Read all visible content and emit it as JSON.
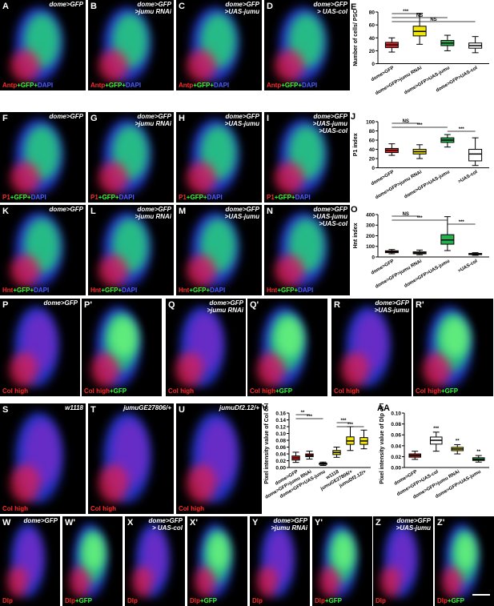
{
  "panels": [
    {
      "id": "A",
      "geno": [
        "dome>GFP"
      ],
      "stain": [
        [
          "Antp",
          "r"
        ],
        [
          "+GFP+",
          "g"
        ],
        [
          "DAPI",
          "b"
        ]
      ]
    },
    {
      "id": "B",
      "geno": [
        "dome>GFP",
        ">jumu RNAi"
      ],
      "stain": [
        [
          "Antp",
          "r"
        ],
        [
          "+GFP+",
          "g"
        ],
        [
          "DAPI",
          "b"
        ]
      ]
    },
    {
      "id": "C",
      "geno": [
        "dome>GFP",
        ">UAS-jumu"
      ],
      "stain": [
        [
          "Antp",
          "r"
        ],
        [
          "+GFP+",
          "g"
        ],
        [
          "DAPI",
          "b"
        ]
      ]
    },
    {
      "id": "D",
      "geno": [
        "dome>GFP",
        "> UAS-col"
      ],
      "stain": [
        [
          "Antp",
          "r"
        ],
        [
          "+GFP+",
          "g"
        ],
        [
          "DAPI",
          "b"
        ]
      ]
    },
    {
      "id": "F",
      "geno": [
        "dome>GFP"
      ],
      "stain": [
        [
          "P1",
          "r"
        ],
        [
          "+GFP+",
          "g"
        ],
        [
          "DAPI",
          "b"
        ]
      ]
    },
    {
      "id": "G",
      "geno": [
        "dome>GFP",
        ">jumu RNAi"
      ],
      "stain": [
        [
          "P1",
          "r"
        ],
        [
          "+GFP+",
          "g"
        ],
        [
          "DAPI",
          "b"
        ]
      ]
    },
    {
      "id": "H",
      "geno": [
        "dome>GFP",
        ">UAS-jumu"
      ],
      "stain": [
        [
          "P1",
          "r"
        ],
        [
          "+GFP+",
          "g"
        ],
        [
          "DAPI",
          "b"
        ]
      ]
    },
    {
      "id": "I",
      "geno": [
        "dome>GFP",
        ">UAS-jumu",
        ">UAS-col"
      ],
      "stain": [
        [
          "P1",
          "r"
        ],
        [
          "+GFP+",
          "g"
        ],
        [
          "DAPI",
          "b"
        ]
      ]
    },
    {
      "id": "K",
      "geno": [
        "dome>GFP"
      ],
      "stain": [
        [
          "Hnt",
          "r"
        ],
        [
          "+GFP+",
          "g"
        ],
        [
          "DAPI",
          "b"
        ]
      ]
    },
    {
      "id": "L",
      "geno": [
        "dome>GFP",
        ">jumu RNAi"
      ],
      "stain": [
        [
          "Hnt",
          "r"
        ],
        [
          "+GFP+",
          "g"
        ],
        [
          "DAPI",
          "b"
        ]
      ]
    },
    {
      "id": "M",
      "geno": [
        "dome>GFP",
        ">UAS-jumu"
      ],
      "stain": [
        [
          "Hnt",
          "r"
        ],
        [
          "+GFP+",
          "g"
        ],
        [
          "DAPI",
          "b"
        ]
      ]
    },
    {
      "id": "N",
      "geno": [
        "dome>GFP",
        ">UAS-jumu",
        ">UAS-col"
      ],
      "stain": [
        [
          "Hnt",
          "r"
        ],
        [
          "+GFP+",
          "g"
        ],
        [
          "DAPI",
          "b"
        ]
      ]
    },
    {
      "id": "P",
      "geno": [
        "dome>GFP"
      ],
      "stain": [
        [
          "Col high",
          "r"
        ]
      ]
    },
    {
      "id": "P'",
      "geno": [],
      "stain": [
        [
          "Col high",
          "r"
        ],
        [
          "+GFP",
          "g"
        ]
      ]
    },
    {
      "id": "Q",
      "geno": [
        "dome>GFP",
        ">jumu RNAi"
      ],
      "stain": [
        [
          "Col high",
          "r"
        ]
      ]
    },
    {
      "id": "Q'",
      "geno": [],
      "stain": [
        [
          "Col high",
          "r"
        ],
        [
          "+GFP",
          "g"
        ]
      ]
    },
    {
      "id": "R",
      "geno": [
        "dome>GFP",
        ">UAS-jumu"
      ],
      "stain": [
        [
          "Col high",
          "r"
        ]
      ]
    },
    {
      "id": "R'",
      "geno": [],
      "stain": [
        [
          "Col high",
          "r"
        ],
        [
          "+GFP",
          "g"
        ]
      ]
    },
    {
      "id": "S",
      "geno": [
        "w1118"
      ],
      "stain": [
        [
          "Col high",
          "r"
        ]
      ]
    },
    {
      "id": "T",
      "geno": [
        "jumuGE27806/+"
      ],
      "stain": [
        [
          "Col high",
          "r"
        ]
      ]
    },
    {
      "id": "U",
      "geno": [
        "jumuDf2.12/+"
      ],
      "stain": [
        [
          "Col high",
          "r"
        ]
      ]
    },
    {
      "id": "W",
      "geno": [
        "dome>GFP"
      ],
      "stain": [
        [
          "Dlp",
          "r"
        ]
      ]
    },
    {
      "id": "W'",
      "geno": [],
      "stain": [
        [
          "Dlp",
          "r"
        ],
        [
          "+GFP",
          "g"
        ]
      ]
    },
    {
      "id": "X",
      "geno": [
        "dome>GFP",
        "> UAS-col"
      ],
      "stain": [
        [
          "Dlp",
          "r"
        ]
      ]
    },
    {
      "id": "X'",
      "geno": [],
      "stain": [
        [
          "Dlp",
          "r"
        ],
        [
          "+GFP",
          "g"
        ]
      ]
    },
    {
      "id": "Y",
      "geno": [
        "dome>GFP",
        ">jumu RNAi"
      ],
      "stain": [
        [
          "Dlp",
          "r"
        ]
      ]
    },
    {
      "id": "Y'",
      "geno": [],
      "stain": [
        [
          "Dlp",
          "r"
        ],
        [
          "+GFP",
          "g"
        ]
      ]
    },
    {
      "id": "Z",
      "geno": [
        "dome>GFP",
        ">UAS-jumu"
      ],
      "stain": [
        [
          "Dlp",
          "r"
        ]
      ]
    },
    {
      "id": "Z'",
      "geno": [],
      "stain": [
        [
          "Dlp",
          "r"
        ],
        [
          "+GFP",
          "g"
        ]
      ]
    }
  ],
  "colors": {
    "red": "#e02020",
    "yellow": "#f2e60a",
    "green": "#22b14c",
    "white": "#ffffff"
  },
  "chart_data": [
    {
      "id": "E",
      "type": "box",
      "ylabel": "Number of cells/ PSC",
      "ylim": [
        0,
        80
      ],
      "yticks": [
        0,
        20,
        40,
        60,
        80
      ],
      "categories": [
        "dome>GFP",
        "dome>GFP>jumu RNAi",
        "dome>GFP>UAS-jumu",
        "dome>GFP>UAS-col"
      ],
      "boxes": [
        {
          "min": 18,
          "q1": 25,
          "med": 29,
          "q3": 33,
          "max": 40,
          "color": "red"
        },
        {
          "min": 30,
          "q1": 43,
          "med": 50,
          "q3": 58,
          "max": 78,
          "color": "yellow"
        },
        {
          "min": 20,
          "q1": 28,
          "med": 32,
          "q3": 36,
          "max": 44,
          "color": "green"
        },
        {
          "min": 17,
          "q1": 24,
          "med": 28,
          "q3": 32,
          "max": 42,
          "color": "white"
        }
      ],
      "sig": [
        {
          "a": 0,
          "b": 1,
          "label": "***"
        },
        {
          "a": 0,
          "b": 2,
          "label": "NS"
        },
        {
          "a": 0,
          "b": 3,
          "label": "NS"
        }
      ]
    },
    {
      "id": "J",
      "type": "box",
      "ylabel": "P1 index",
      "ylim": [
        0,
        100
      ],
      "yticks": [
        0,
        20,
        40,
        60,
        80,
        100
      ],
      "categories": [
        "dome>GFP",
        "dome>GFP>jumu RNAi",
        "dome>GFP>UAS-jumu",
        ">UAS-col"
      ],
      "boxes": [
        {
          "min": 27,
          "q1": 33,
          "med": 38,
          "q3": 42,
          "max": 52,
          "color": "red"
        },
        {
          "min": 20,
          "q1": 30,
          "med": 35,
          "q3": 40,
          "max": 50,
          "color": "yellow"
        },
        {
          "min": 45,
          "q1": 55,
          "med": 60,
          "q3": 65,
          "max": 72,
          "color": "green"
        },
        {
          "min": 5,
          "q1": 15,
          "med": 30,
          "q3": 40,
          "max": 65,
          "color": "white"
        }
      ],
      "sig": [
        {
          "a": 0,
          "b": 1,
          "label": "NS"
        },
        {
          "a": 0,
          "b": 2,
          "label": "***"
        },
        {
          "a": 2,
          "b": 3,
          "label": "***"
        }
      ]
    },
    {
      "id": "O",
      "type": "box",
      "ylabel": "Hnt index",
      "ylim": [
        0,
        400
      ],
      "yticks": [
        0,
        100,
        200,
        300,
        400
      ],
      "categories": [
        "dome>GFP",
        "dome>GFP>jumu RNAi",
        "dome>GFP>UAS-jumu",
        ">UAS-col"
      ],
      "boxes": [
        {
          "min": 30,
          "q1": 40,
          "med": 50,
          "q3": 58,
          "max": 70,
          "color": "red"
        },
        {
          "min": 20,
          "q1": 30,
          "med": 38,
          "q3": 48,
          "max": 65,
          "color": "yellow"
        },
        {
          "min": 60,
          "q1": 120,
          "med": 160,
          "q3": 210,
          "max": 380,
          "color": "green"
        },
        {
          "min": 15,
          "q1": 22,
          "med": 28,
          "q3": 33,
          "max": 40,
          "color": "white"
        }
      ],
      "sig": [
        {
          "a": 0,
          "b": 1,
          "label": "NS"
        },
        {
          "a": 0,
          "b": 2,
          "label": "***"
        },
        {
          "a": 2,
          "b": 3,
          "label": "***"
        }
      ]
    },
    {
      "id": "V",
      "type": "box",
      "ylabel": "Pixel intensity value of Col of MZ",
      "ylim": [
        0,
        0.16
      ],
      "yticks": [
        0.0,
        0.02,
        0.04,
        0.06,
        0.08,
        0.1,
        0.12,
        0.14,
        0.16
      ],
      "categories": [
        "dome>GFP",
        "dome>GFP>jumu RNAi",
        "dome>GFP>UAS-jumu",
        "w1118",
        "jumuGE27806/+",
        "jumuDf2.12/+"
      ],
      "boxes": [
        {
          "min": 0.015,
          "q1": 0.022,
          "med": 0.028,
          "q3": 0.034,
          "max": 0.045,
          "color": "red"
        },
        {
          "min": 0.025,
          "q1": 0.032,
          "med": 0.036,
          "q3": 0.04,
          "max": 0.048,
          "color": "red"
        },
        {
          "min": 0.006,
          "q1": 0.009,
          "med": 0.011,
          "q3": 0.013,
          "max": 0.016,
          "color": "white"
        },
        {
          "min": 0.03,
          "q1": 0.038,
          "med": 0.044,
          "q3": 0.05,
          "max": 0.06,
          "color": "yellow"
        },
        {
          "min": 0.05,
          "q1": 0.068,
          "med": 0.078,
          "q3": 0.09,
          "max": 0.12,
          "color": "yellow"
        },
        {
          "min": 0.055,
          "q1": 0.068,
          "med": 0.078,
          "q3": 0.088,
          "max": 0.11,
          "color": "yellow"
        }
      ],
      "sig": [
        {
          "a": 0,
          "b": 1,
          "label": "**"
        },
        {
          "a": 0,
          "b": 2,
          "label": "***"
        },
        {
          "a": 3,
          "b": 4,
          "label": "***"
        },
        {
          "a": 3,
          "b": 5,
          "label": "***"
        }
      ]
    },
    {
      "id": "AA",
      "type": "box",
      "ylabel": "Pixel intensity value of Dlp of MZ",
      "ylim": [
        0,
        0.1
      ],
      "yticks": [
        0.0,
        0.02,
        0.04,
        0.06,
        0.08,
        0.1
      ],
      "categories": [
        "dome>GFP",
        "dome>GFP>UAS-col",
        "dome>GFP>jumu RNAi",
        "dome>GFP>UAS-jumu"
      ],
      "boxes": [
        {
          "min": 0.015,
          "q1": 0.019,
          "med": 0.022,
          "q3": 0.025,
          "max": 0.03,
          "color": "red"
        },
        {
          "min": 0.03,
          "q1": 0.043,
          "med": 0.05,
          "q3": 0.056,
          "max": 0.065,
          "color": "white"
        },
        {
          "min": 0.025,
          "q1": 0.031,
          "med": 0.034,
          "q3": 0.037,
          "max": 0.042,
          "color": "yellow"
        },
        {
          "min": 0.01,
          "q1": 0.013,
          "med": 0.015,
          "q3": 0.018,
          "max": 0.022,
          "color": "green"
        }
      ],
      "sig": [
        {
          "a": 1,
          "b": 1,
          "label": "***"
        },
        {
          "a": 2,
          "b": 2,
          "label": "**"
        },
        {
          "a": 3,
          "b": 3,
          "label": "**"
        }
      ]
    }
  ]
}
